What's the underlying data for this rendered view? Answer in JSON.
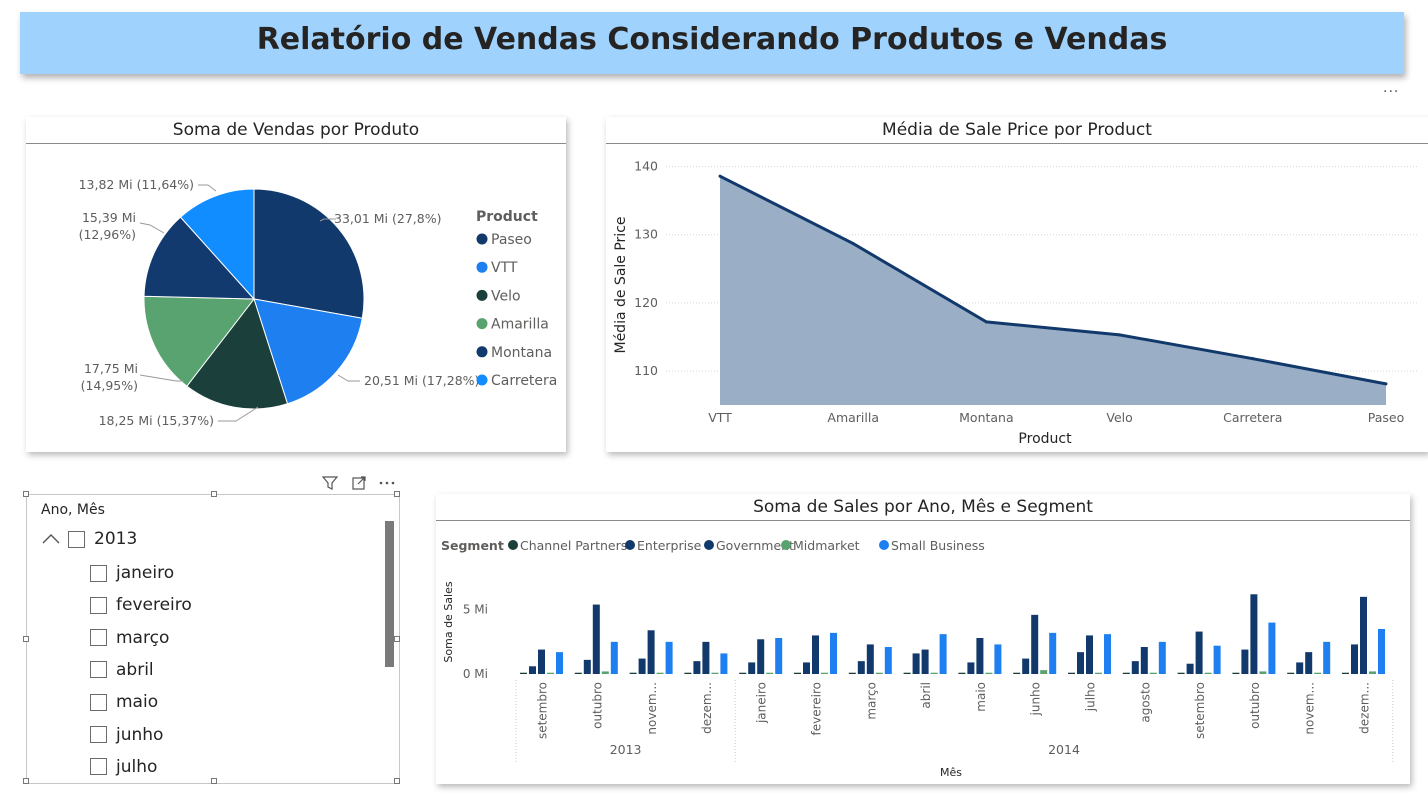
{
  "header": {
    "title": "Relatório de Vendas Considerando Produtos e Vendas"
  },
  "visual_menu_glyph": "...",
  "pie": {
    "title": "Soma de Vendas por Produto",
    "legend_title": "Product",
    "legend": [
      {
        "name": "Paseo",
        "color": "#12396b"
      },
      {
        "name": "VTT",
        "color": "#1e7ff0"
      },
      {
        "name": "Velo",
        "color": "#1b3f3b"
      },
      {
        "name": "Amarilla",
        "color": "#58a370"
      },
      {
        "name": "Montana",
        "color": "#123a6e"
      },
      {
        "name": "Carretera",
        "color": "#118dff"
      }
    ]
  },
  "area": {
    "title": "Média de Sale Price por Product"
  },
  "bars": {
    "title": "Soma de Sales por Ano, Mês e Segment"
  },
  "slicer": {
    "title": "Ano, Mês",
    "year": "2013",
    "months": [
      "janeiro",
      "fevereiro",
      "março",
      "abril",
      "maio",
      "junho",
      "julho"
    ],
    "icons": [
      "filter-icon",
      "focus-mode-icon",
      "more-options-icon",
      "collapse-chevron-icon"
    ]
  },
  "chart_data": [
    {
      "type": "pie",
      "title": "Soma de Vendas por Produto",
      "legend_title": "Product",
      "legend_position": "right",
      "slices": [
        {
          "name": "Paseo",
          "value": 33.01,
          "label": "33,01 Mi (27,8%)",
          "percent": 27.8,
          "color": "#12396b"
        },
        {
          "name": "VTT",
          "value": 20.51,
          "label": "20,51 Mi (17,28%)",
          "percent": 17.28,
          "color": "#1e7ff0"
        },
        {
          "name": "Velo",
          "value": 18.25,
          "label": "18,25 Mi (15,37%)",
          "percent": 15.37,
          "color": "#1b3f3b"
        },
        {
          "name": "Amarilla",
          "value": 17.75,
          "label": "17,75 Mi (14,95%)",
          "percent": 14.95,
          "color": "#58a370"
        },
        {
          "name": "Montana",
          "value": 15.39,
          "label": "15,39 Mi (12,96%)",
          "percent": 12.96,
          "color": "#123a6e"
        },
        {
          "name": "Carretera",
          "value": 13.82,
          "label": "13,82 Mi (11,64%)",
          "percent": 11.64,
          "color": "#118dff"
        }
      ]
    },
    {
      "type": "area",
      "title": "Média de Sale Price por Product",
      "xlabel": "Product",
      "ylabel": "Média de Sale Price",
      "categories": [
        "VTT",
        "Amarilla",
        "Montana",
        "Velo",
        "Carretera",
        "Paseo"
      ],
      "values": [
        138.6,
        128.7,
        117.2,
        115.3,
        111.8,
        108.1
      ],
      "ylim": [
        105,
        142
      ],
      "yticks": [
        110,
        120,
        130,
        140
      ],
      "line_color": "#12396b",
      "fill_color": "#9aaec5",
      "grid": true
    },
    {
      "type": "bar",
      "title": "Soma de Sales por Ano, Mês e Segment",
      "xlabel": "Mês",
      "ylabel": "Soma de Sales",
      "legend_title": "Segment",
      "legend_position": "top-left",
      "ylim": [
        0,
        7
      ],
      "yticks": [
        {
          "value": 0,
          "label": "0 Mi"
        },
        {
          "value": 5,
          "label": "5 Mi"
        }
      ],
      "groups": [
        {
          "year": "2013",
          "months": [
            "setembro",
            "outubro",
            "novem...",
            "dezem..."
          ]
        },
        {
          "year": "2014",
          "months": [
            "janeiro",
            "fevereiro",
            "março",
            "abril",
            "maio",
            "junho",
            "julho",
            "agosto",
            "setembro",
            "outubro",
            "novem...",
            "dezem..."
          ]
        }
      ],
      "categories": [
        "setembro",
        "outubro",
        "novem...",
        "dezem...",
        "janeiro",
        "fevereiro",
        "março",
        "abril",
        "maio",
        "junho",
        "julho",
        "agosto",
        "setembro",
        "outubro",
        "novem...",
        "dezem..."
      ],
      "series": [
        {
          "name": "Channel Partners",
          "color": "#1b3f3b",
          "values": [
            0.1,
            0.1,
            0.1,
            0.1,
            0.1,
            0.1,
            0.1,
            0.1,
            0.1,
            0.1,
            0.1,
            0.1,
            0.1,
            0.1,
            0.1,
            0.1
          ]
        },
        {
          "name": "Enterprise",
          "color": "#12396b",
          "values": [
            0.6,
            1.1,
            1.2,
            1.0,
            0.9,
            0.9,
            1.0,
            1.6,
            0.9,
            1.2,
            1.7,
            1.0,
            0.8,
            1.9,
            0.9,
            2.3
          ]
        },
        {
          "name": "Government",
          "color": "#12396b",
          "values": [
            1.9,
            5.4,
            3.4,
            2.5,
            2.7,
            3.0,
            2.3,
            1.9,
            2.8,
            4.6,
            3.0,
            2.1,
            3.3,
            6.2,
            1.7,
            6.0
          ]
        },
        {
          "name": "Midmarket",
          "color": "#58a370",
          "values": [
            0.1,
            0.2,
            0.1,
            0.1,
            0.1,
            0.1,
            0.1,
            0.1,
            0.1,
            0.3,
            0.1,
            0.1,
            0.1,
            0.2,
            0.1,
            0.2
          ]
        },
        {
          "name": "Small Business",
          "color": "#1e7ff0",
          "values": [
            1.7,
            2.5,
            2.5,
            1.6,
            2.8,
            3.2,
            2.1,
            3.1,
            2.3,
            3.2,
            3.1,
            2.5,
            2.2,
            4.0,
            2.5,
            3.5
          ]
        }
      ]
    }
  ]
}
